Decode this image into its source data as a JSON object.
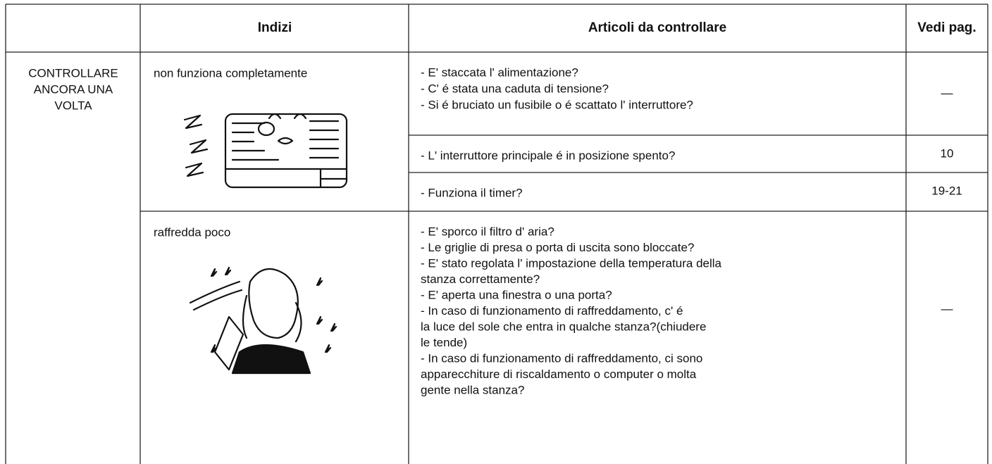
{
  "table": {
    "header": {
      "indizi": "Indizi",
      "articoli": "Articoli da controllare",
      "pagine": "Vedi pag."
    },
    "section": [
      "CONTROLLARE",
      "ANCORA UNA",
      "VOLTA"
    ],
    "groups": [
      {
        "symptom": "non funziona completamente",
        "checks": [
          {
            "lines": [
              "- E' staccata l' alimentazione?",
              "- C' é stata una caduta di tensione?",
              "- Si é bruciato un fusibile o é scattato l' interruttore?"
            ],
            "page": "—"
          },
          {
            "lines": [
              "- L' interruttore principale é in posizione spento?"
            ],
            "page": "10"
          },
          {
            "lines": [
              "- Funziona il timer?"
            ],
            "page": "19-21"
          }
        ]
      },
      {
        "symptom": "raffredda poco",
        "checks": [
          {
            "lines": [
              "- E' sporco il filtro d' aria?",
              "- Le griglie di presa o porta di uscita sono bloccate?",
              "- E' stato regolata l' impostazione della temperatura della",
              " stanza correttamente?",
              "- E' aperta una finestra o una porta?",
              "- In caso di funzionamento di raffreddamento, c' é",
              "la luce del sole che entra in qualche stanza?(chiudere",
              "le tende)",
              "- In caso di funzionamento di raffreddamento, ci sono",
              "apparecchiture di riscaldamento o computer o molta",
              "gente nella stanza?"
            ],
            "page": "—"
          }
        ]
      }
    ]
  }
}
